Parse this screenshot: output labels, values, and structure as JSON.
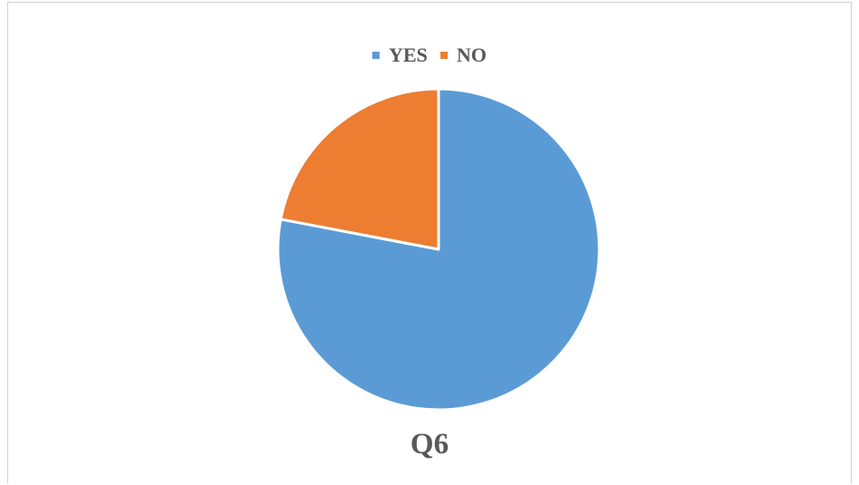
{
  "chart_data": {
    "type": "pie",
    "title": "Q6",
    "legend_position": "top",
    "categories": [
      "YES",
      "NO"
    ],
    "values": [
      78,
      22
    ],
    "colors": [
      "#5b9bd5",
      "#ed7d31"
    ]
  }
}
